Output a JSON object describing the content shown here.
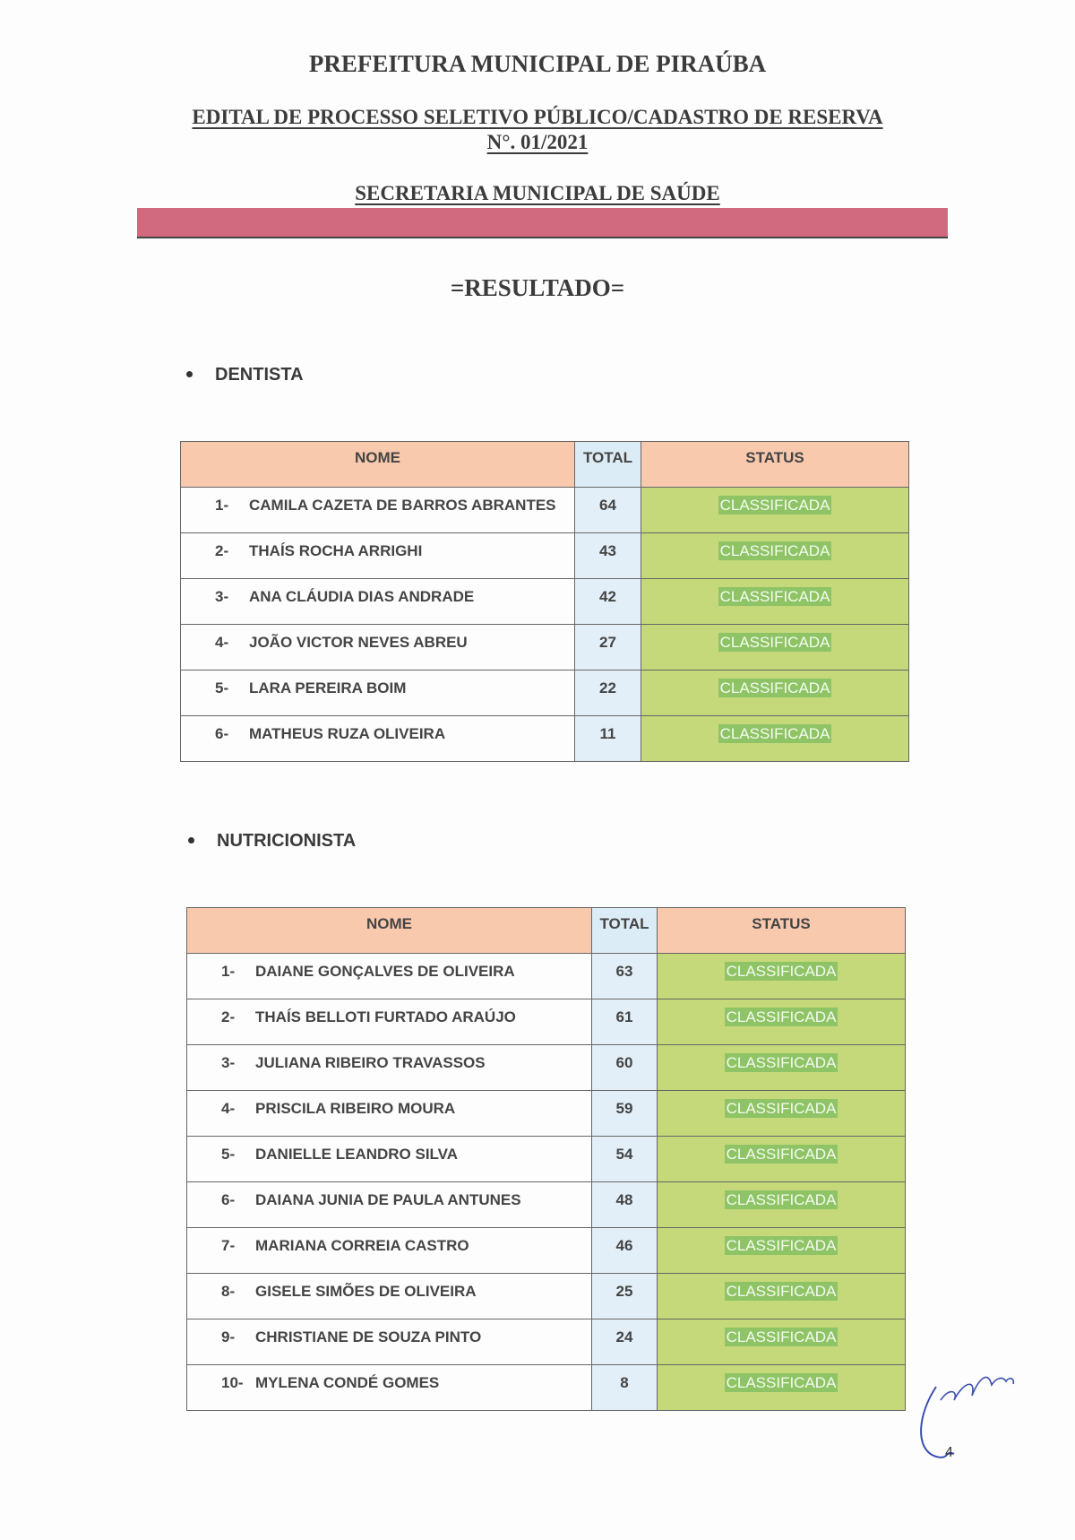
{
  "header": {
    "title": "PREFEITURA MUNICIPAL DE PIRAÚBA",
    "edital": "EDITAL DE PROCESSO SELETIVO PÚBLICO/CADASTRO DE RESERVA",
    "numero": "N°. 01/2021",
    "secretaria": "SECRETARIA MUNICIPAL DE SAÚDE",
    "resultado": "=RESULTADO=",
    "accent_bar_color": "#d16a7f"
  },
  "columns": {
    "nome": "NOME",
    "total": "TOTAL",
    "status": "STATUS"
  },
  "sections": [
    {
      "title": "DENTISTA",
      "rows": [
        {
          "n": "1-",
          "nome": "CAMILA CAZETA DE BARROS ABRANTES",
          "total": "64",
          "status": "CLASSIFICADA"
        },
        {
          "n": "2-",
          "nome": "THAÍS ROCHA ARRIGHI",
          "total": "43",
          "status": "CLASSIFICADA"
        },
        {
          "n": "3-",
          "nome": "ANA CLÁUDIA DIAS ANDRADE",
          "total": "42",
          "status": "CLASSIFICADA"
        },
        {
          "n": "4-",
          "nome": "JOÃO VICTOR NEVES ABREU",
          "total": "27",
          "status": "CLASSIFICADA"
        },
        {
          "n": "5-",
          "nome": "LARA PEREIRA BOIM",
          "total": "22",
          "status": "CLASSIFICADA"
        },
        {
          "n": "6-",
          "nome": "MATHEUS RUZA OLIVEIRA",
          "total": "11",
          "status": "CLASSIFICADA"
        }
      ]
    },
    {
      "title": "NUTRICIONISTA",
      "rows": [
        {
          "n": "1-",
          "nome": "DAIANE GONÇALVES DE OLIVEIRA",
          "total": "63",
          "status": "CLASSIFICADA"
        },
        {
          "n": "2-",
          "nome": "THAÍS BELLOTI FURTADO ARAÚJO",
          "total": "61",
          "status": "CLASSIFICADA"
        },
        {
          "n": "3-",
          "nome": "JULIANA RIBEIRO TRAVASSOS",
          "total": "60",
          "status": "CLASSIFICADA"
        },
        {
          "n": "4-",
          "nome": "PRISCILA RIBEIRO MOURA",
          "total": "59",
          "status": "CLASSIFICADA"
        },
        {
          "n": "5-",
          "nome": "DANIELLE LEANDRO SILVA",
          "total": "54",
          "status": "CLASSIFICADA"
        },
        {
          "n": "6-",
          "nome": "DAIANA JUNIA DE PAULA ANTUNES",
          "total": "48",
          "status": "CLASSIFICADA"
        },
        {
          "n": "7-",
          "nome": "MARIANA CORREIA CASTRO",
          "total": "46",
          "status": "CLASSIFICADA"
        },
        {
          "n": "8-",
          "nome": "GISELE SIMÕES DE OLIVEIRA",
          "total": "25",
          "status": "CLASSIFICADA"
        },
        {
          "n": "9-",
          "nome": "CHRISTIANE DE SOUZA PINTO",
          "total": "24",
          "status": "CLASSIFICADA"
        },
        {
          "n": "10-",
          "nome": "MYLENA CONDÉ GOMES",
          "total": "8",
          "status": "CLASSIFICADA"
        }
      ]
    }
  ],
  "page_number": "4"
}
